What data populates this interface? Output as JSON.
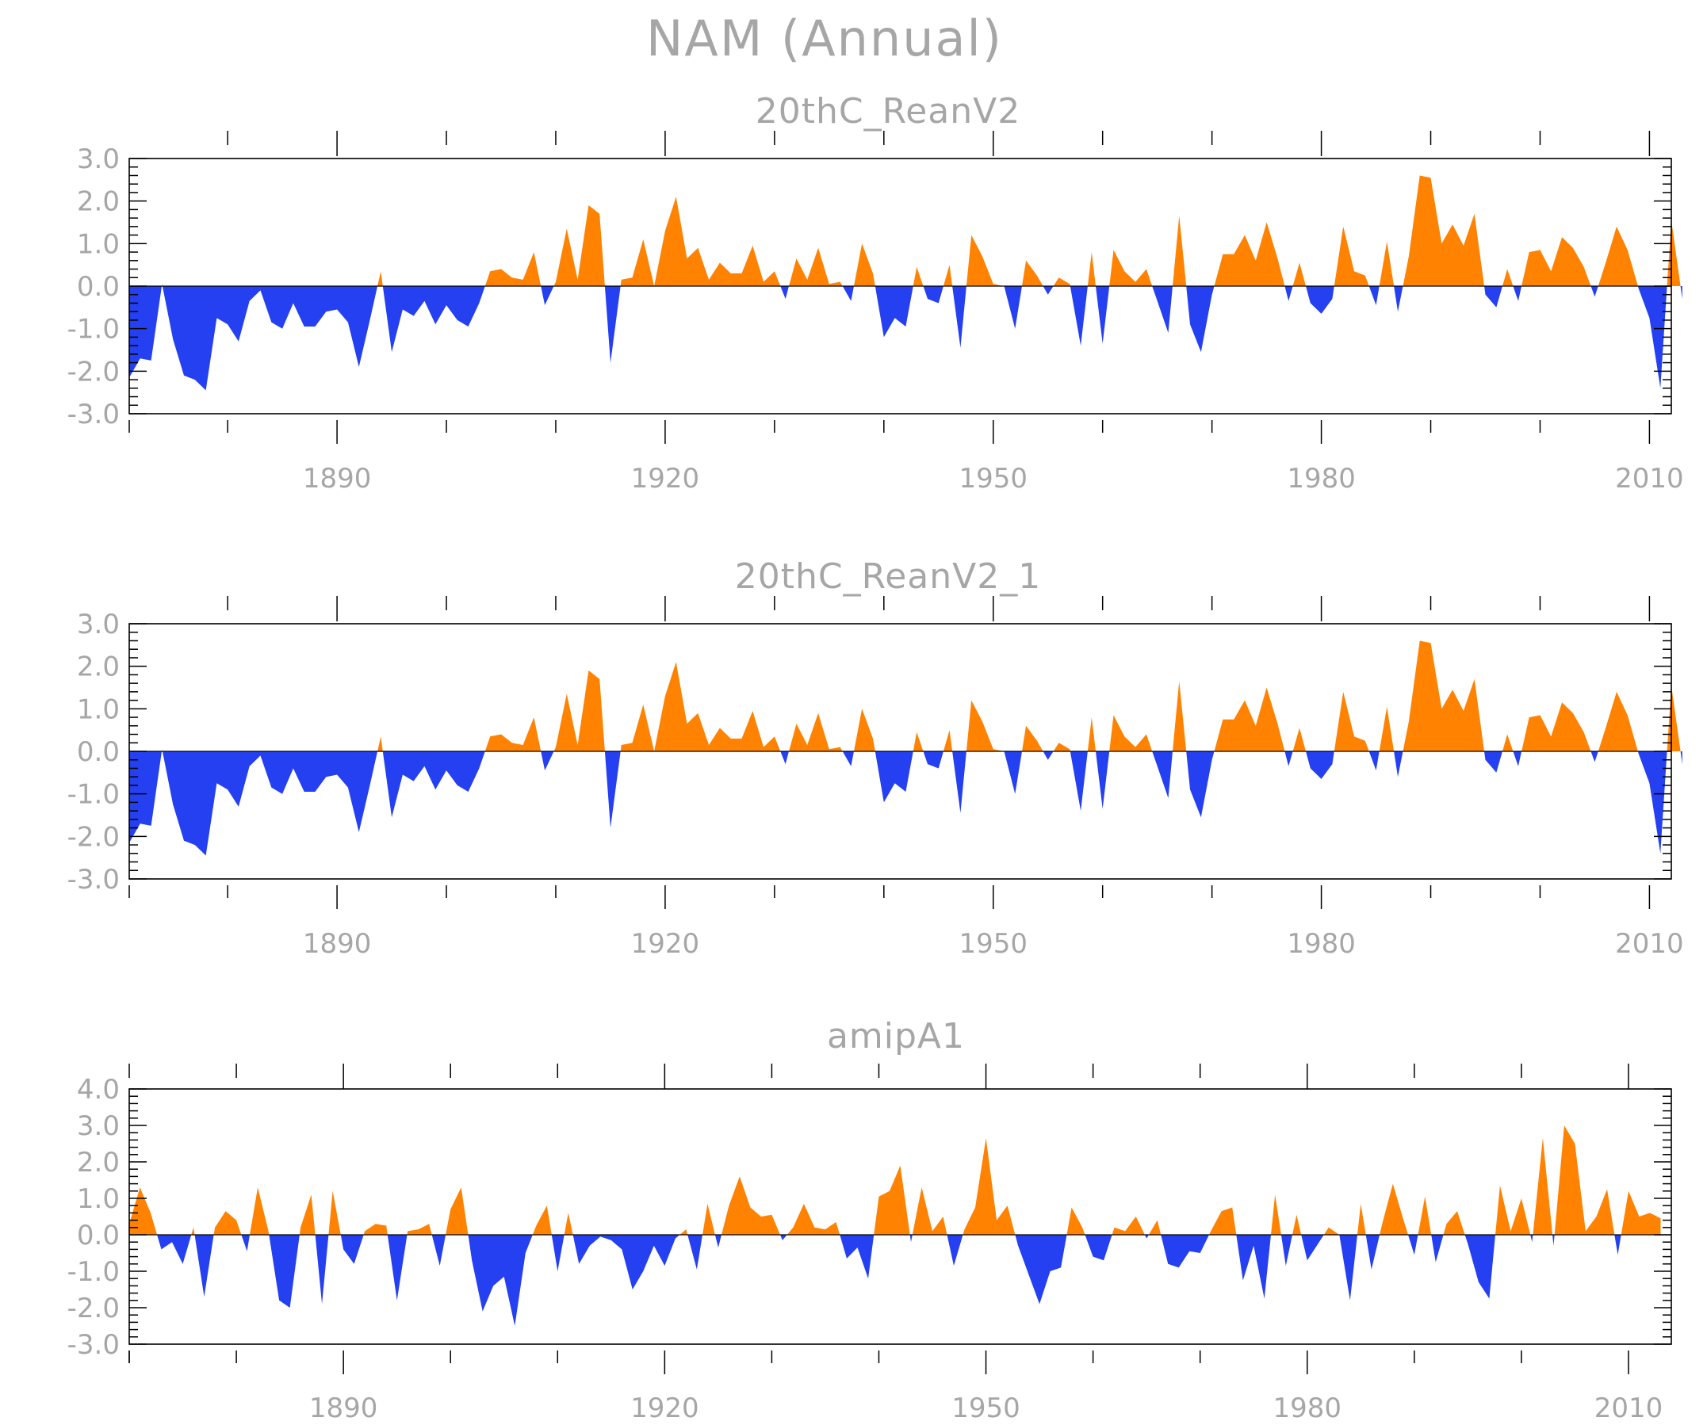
{
  "figure": {
    "title": "NAM (Annual)"
  },
  "colors": {
    "positive": "#ff8200",
    "negative": "#2440f0",
    "labels": "#a6a6a6",
    "axes": "#000000"
  },
  "chart_data": [
    {
      "type": "area",
      "title": "20thC_ReanV2",
      "xlim": [
        1871,
        2012
      ],
      "ylim": [
        -3,
        3
      ],
      "yticks": [
        "3.0",
        "2.0",
        "1.0",
        "0.0",
        "-1.0",
        "-2.0",
        "-3.0"
      ],
      "xticks": [
        "1890",
        "1920",
        "1950",
        "1980",
        "2010"
      ],
      "x_start": 1871,
      "values": [
        -2.15,
        -1.7,
        -1.75,
        0.05,
        -1.25,
        -2.1,
        -2.2,
        -2.45,
        -0.75,
        -0.9,
        -1.3,
        -0.35,
        -0.1,
        -0.85,
        -1.0,
        -0.4,
        -0.95,
        -0.95,
        -0.6,
        -0.55,
        -0.85,
        -1.9,
        -0.8,
        0.35,
        -1.55,
        -0.55,
        -0.7,
        -0.35,
        -0.9,
        -0.45,
        -0.8,
        -0.95,
        -0.4,
        0.35,
        0.4,
        0.2,
        0.15,
        0.8,
        -0.45,
        0.1,
        1.35,
        0.15,
        1.9,
        1.7,
        -1.8,
        0.15,
        0.2,
        1.1,
        0.0,
        1.3,
        2.1,
        0.65,
        0.9,
        0.15,
        0.55,
        0.3,
        0.3,
        0.95,
        0.1,
        0.35,
        -0.3,
        0.65,
        0.15,
        0.9,
        0.05,
        0.1,
        -0.35,
        1.0,
        0.3,
        -1.2,
        -0.75,
        -0.95,
        0.45,
        -0.3,
        -0.4,
        0.5,
        -1.45,
        1.2,
        0.7,
        0.05,
        0.0,
        -1.0,
        0.6,
        0.25,
        -0.2,
        0.2,
        0.05,
        -1.4,
        0.8,
        -1.35,
        0.85,
        0.35,
        0.1,
        0.4,
        -0.35,
        -1.1,
        1.65,
        -0.9,
        -1.55,
        -0.2,
        0.75,
        0.75,
        1.2,
        0.6,
        1.5,
        0.65,
        -0.35,
        0.55,
        -0.4,
        -0.65,
        -0.3,
        1.4,
        0.35,
        0.25,
        -0.45,
        1.05,
        -0.6,
        0.7,
        2.6,
        2.55,
        1.0,
        1.45,
        0.95,
        1.7,
        -0.2,
        -0.5,
        0.4,
        -0.35,
        0.8,
        0.85,
        0.35,
        1.15,
        0.9,
        0.45,
        -0.25,
        0.55,
        1.4,
        0.85,
        -0.05,
        -0.75,
        -2.4,
        1.55,
        -0.3
      ]
    },
    {
      "type": "area",
      "title": "20thC_ReanV2_1",
      "xlim": [
        1871,
        2012
      ],
      "ylim": [
        -3,
        3
      ],
      "yticks": [
        "3.0",
        "2.0",
        "1.0",
        "0.0",
        "-1.0",
        "-2.0",
        "-3.0"
      ],
      "xticks": [
        "1890",
        "1920",
        "1950",
        "1980",
        "2010"
      ],
      "x_start": 1871,
      "values": [
        -2.15,
        -1.7,
        -1.75,
        0.05,
        -1.25,
        -2.1,
        -2.2,
        -2.45,
        -0.75,
        -0.9,
        -1.3,
        -0.35,
        -0.1,
        -0.85,
        -1.0,
        -0.4,
        -0.95,
        -0.95,
        -0.6,
        -0.55,
        -0.85,
        -1.9,
        -0.8,
        0.35,
        -1.55,
        -0.55,
        -0.7,
        -0.35,
        -0.9,
        -0.45,
        -0.8,
        -0.95,
        -0.4,
        0.35,
        0.4,
        0.2,
        0.15,
        0.8,
        -0.45,
        0.1,
        1.35,
        0.15,
        1.9,
        1.7,
        -1.8,
        0.15,
        0.2,
        1.1,
        0.0,
        1.3,
        2.1,
        0.65,
        0.9,
        0.15,
        0.55,
        0.3,
        0.3,
        0.95,
        0.1,
        0.35,
        -0.3,
        0.65,
        0.15,
        0.9,
        0.05,
        0.1,
        -0.35,
        1.0,
        0.3,
        -1.2,
        -0.75,
        -0.95,
        0.45,
        -0.3,
        -0.4,
        0.5,
        -1.45,
        1.2,
        0.7,
        0.05,
        0.0,
        -1.0,
        0.6,
        0.25,
        -0.2,
        0.2,
        0.05,
        -1.4,
        0.8,
        -1.35,
        0.85,
        0.35,
        0.1,
        0.4,
        -0.35,
        -1.1,
        1.65,
        -0.9,
        -1.55,
        -0.2,
        0.75,
        0.75,
        1.2,
        0.6,
        1.5,
        0.65,
        -0.35,
        0.55,
        -0.4,
        -0.65,
        -0.3,
        1.4,
        0.35,
        0.25,
        -0.45,
        1.05,
        -0.6,
        0.7,
        2.6,
        2.55,
        1.0,
        1.45,
        0.95,
        1.7,
        -0.2,
        -0.5,
        0.4,
        -0.35,
        0.8,
        0.85,
        0.35,
        1.15,
        0.9,
        0.45,
        -0.25,
        0.55,
        1.4,
        0.85,
        -0.05,
        -0.75,
        -2.4,
        1.55,
        -0.3
      ]
    },
    {
      "type": "area",
      "title": "amipA1",
      "xlim": [
        1870,
        2014
      ],
      "ylim": [
        -3,
        4
      ],
      "yticks": [
        "4.0",
        "3.0",
        "2.0",
        "1.0",
        "0.0",
        "-1.0",
        "-2.0",
        "-3.0"
      ],
      "xticks": [
        "1890",
        "1920",
        "1950",
        "1980",
        "2010"
      ],
      "x_start": 1870,
      "values": [
        0.3,
        1.3,
        0.6,
        -0.4,
        -0.2,
        -0.8,
        0.2,
        -1.7,
        0.2,
        0.65,
        0.4,
        -0.45,
        1.3,
        0.1,
        -1.8,
        -2.0,
        0.2,
        1.1,
        -1.9,
        1.2,
        -0.4,
        -0.8,
        0.1,
        0.3,
        0.25,
        -1.8,
        0.1,
        0.15,
        0.3,
        -0.85,
        0.7,
        1.3,
        -0.7,
        -2.1,
        -1.4,
        -1.15,
        -2.5,
        -0.5,
        0.25,
        0.8,
        -1.0,
        0.6,
        -0.8,
        -0.3,
        -0.05,
        -0.15,
        -0.4,
        -1.5,
        -1.0,
        -0.3,
        -0.85,
        -0.1,
        0.15,
        -0.95,
        0.85,
        -0.35,
        0.8,
        1.6,
        0.75,
        0.5,
        0.55,
        -0.15,
        0.2,
        0.85,
        0.2,
        0.15,
        0.35,
        -0.65,
        -0.35,
        -1.2,
        1.05,
        1.2,
        1.9,
        -0.2,
        1.3,
        0.1,
        0.5,
        -0.85,
        0.15,
        0.75,
        2.65,
        0.4,
        0.8,
        -0.3,
        -1.1,
        -1.9,
        -1.0,
        -0.9,
        0.75,
        0.2,
        -0.6,
        -0.7,
        0.2,
        0.1,
        0.5,
        -0.1,
        0.4,
        -0.8,
        -0.9,
        -0.45,
        -0.5,
        0.1,
        0.65,
        0.75,
        -1.25,
        -0.3,
        -1.75,
        1.1,
        -0.85,
        0.55,
        -0.7,
        -0.25,
        0.2,
        0.0,
        -1.8,
        0.85,
        -0.95,
        0.3,
        1.4,
        0.4,
        -0.55,
        1.05,
        -0.75,
        0.3,
        0.65,
        -0.25,
        -1.3,
        -1.75,
        1.35,
        0.1,
        1.0,
        -0.2,
        2.65,
        -0.3,
        3.0,
        2.5,
        0.1,
        0.5,
        1.25,
        -0.55,
        1.2,
        0.5,
        0.6,
        0.45
      ]
    }
  ]
}
